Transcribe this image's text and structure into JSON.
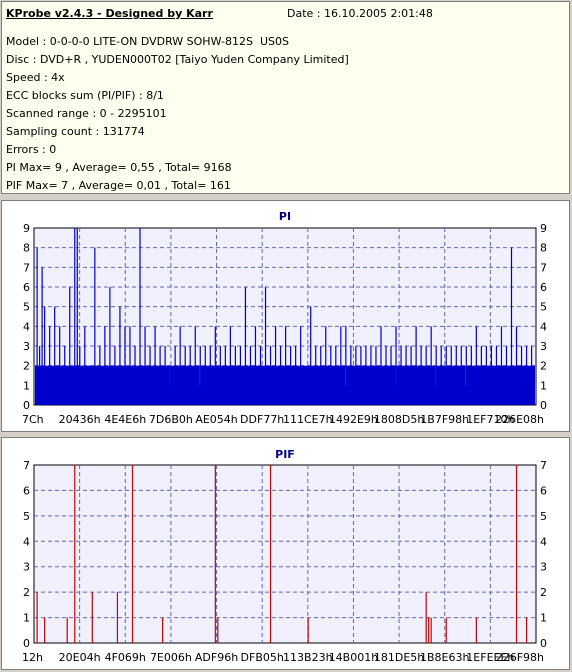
{
  "header": {
    "app_title": "KProbe v2.4.3 - Designed by Karr",
    "date": "Date : 16.10.2005 2:01:48"
  },
  "info_lines": [
    "Model : 0-0-0-0 LITE-ON DVDRW SOHW-812S  US0S",
    "Disc : DVD+R , YUDEN000T02 [Taiyo Yuden Company Limited]",
    "Speed : 4x",
    "ECC blocks sum (PI/PIF) : 8/1",
    "Scanned range : 0 - 2295101",
    "Sampling count : 131774",
    "Errors : 0",
    "PI Max= 9 , Average= 0,55 , Total= 9168",
    "PIF Max= 7 , Average= 0,01 , Total= 161"
  ],
  "colors": {
    "pi_bar": "#0000cc",
    "pif_bar": "#cc0000",
    "plot_bg": "#f0f0ff",
    "grid": "#6464b4"
  },
  "chart_data": [
    {
      "type": "bar",
      "title": "PI",
      "ylim": [
        0,
        9
      ],
      "y_ticks": [
        0,
        1,
        2,
        3,
        4,
        5,
        6,
        7,
        8,
        9
      ],
      "x_tick_labels": [
        "7Ch",
        "20436h",
        "4E4E6h",
        "7D6B0h",
        "AE054h",
        "DDF77h",
        "111CE7h",
        "1492E9h",
        "1808D5h",
        "1B7F98h",
        "1EF710h",
        "226E08h"
      ],
      "grid": true,
      "baseline_level": 2,
      "spikes": [
        [
          0.005,
          8
        ],
        [
          0.01,
          3
        ],
        [
          0.015,
          7
        ],
        [
          0.02,
          5
        ],
        [
          0.03,
          4
        ],
        [
          0.04,
          5
        ],
        [
          0.05,
          4
        ],
        [
          0.06,
          3
        ],
        [
          0.07,
          6
        ],
        [
          0.08,
          9
        ],
        [
          0.085,
          9
        ],
        [
          0.09,
          3
        ],
        [
          0.1,
          4
        ],
        [
          0.11,
          2
        ],
        [
          0.12,
          8
        ],
        [
          0.13,
          3
        ],
        [
          0.14,
          4
        ],
        [
          0.15,
          6
        ],
        [
          0.16,
          3
        ],
        [
          0.17,
          5
        ],
        [
          0.18,
          4
        ],
        [
          0.19,
          4
        ],
        [
          0.2,
          3
        ],
        [
          0.21,
          9
        ],
        [
          0.22,
          4
        ],
        [
          0.23,
          3
        ],
        [
          0.24,
          4
        ],
        [
          0.25,
          3
        ],
        [
          0.26,
          3
        ],
        [
          0.27,
          2
        ],
        [
          0.28,
          3
        ],
        [
          0.29,
          4
        ],
        [
          0.3,
          3
        ],
        [
          0.31,
          3
        ],
        [
          0.32,
          4
        ],
        [
          0.33,
          3
        ],
        [
          0.34,
          3
        ],
        [
          0.35,
          3
        ],
        [
          0.36,
          4
        ],
        [
          0.37,
          3
        ],
        [
          0.38,
          3
        ],
        [
          0.39,
          4
        ],
        [
          0.4,
          3
        ],
        [
          0.41,
          3
        ],
        [
          0.42,
          6
        ],
        [
          0.43,
          3
        ],
        [
          0.44,
          4
        ],
        [
          0.45,
          3
        ],
        [
          0.46,
          6
        ],
        [
          0.47,
          3
        ],
        [
          0.48,
          4
        ],
        [
          0.49,
          3
        ],
        [
          0.5,
          4
        ],
        [
          0.51,
          3
        ],
        [
          0.52,
          3
        ],
        [
          0.53,
          4
        ],
        [
          0.55,
          5
        ],
        [
          0.56,
          3
        ],
        [
          0.57,
          3
        ],
        [
          0.58,
          4
        ],
        [
          0.59,
          3
        ],
        [
          0.6,
          3
        ],
        [
          0.61,
          4
        ],
        [
          0.62,
          4
        ],
        [
          0.63,
          3
        ],
        [
          0.64,
          3
        ],
        [
          0.65,
          3
        ],
        [
          0.66,
          3
        ],
        [
          0.67,
          3
        ],
        [
          0.68,
          3
        ],
        [
          0.69,
          4
        ],
        [
          0.7,
          3
        ],
        [
          0.71,
          3
        ],
        [
          0.72,
          4
        ],
        [
          0.73,
          3
        ],
        [
          0.74,
          3
        ],
        [
          0.75,
          3
        ],
        [
          0.76,
          4
        ],
        [
          0.77,
          3
        ],
        [
          0.78,
          3
        ],
        [
          0.79,
          4
        ],
        [
          0.8,
          3
        ],
        [
          0.81,
          3
        ],
        [
          0.82,
          3
        ],
        [
          0.83,
          3
        ],
        [
          0.84,
          3
        ],
        [
          0.85,
          3
        ],
        [
          0.86,
          3
        ],
        [
          0.87,
          3
        ],
        [
          0.88,
          4
        ],
        [
          0.89,
          3
        ],
        [
          0.9,
          3
        ],
        [
          0.91,
          3
        ],
        [
          0.92,
          3
        ],
        [
          0.93,
          4
        ],
        [
          0.94,
          3
        ],
        [
          0.95,
          8
        ],
        [
          0.96,
          4
        ],
        [
          0.97,
          3
        ],
        [
          0.98,
          3
        ],
        [
          0.99,
          3
        ]
      ],
      "dips": [
        0.25,
        0.27,
        0.33,
        0.62,
        0.72,
        0.8,
        0.86,
        0.99
      ]
    },
    {
      "type": "bar",
      "title": "PIF",
      "ylim": [
        0,
        7
      ],
      "y_ticks": [
        0,
        1,
        2,
        3,
        4,
        5,
        6,
        7
      ],
      "x_tick_labels": [
        "12h",
        "20E04h",
        "4F069h",
        "7E006h",
        "ADF96h",
        "DFB05h",
        "113B23h",
        "14B001h",
        "181DE5h",
        "1B8E63h",
        "1EFEEEh",
        "226F98h"
      ],
      "grid": true,
      "spikes": [
        [
          0.005,
          2
        ],
        [
          0.02,
          1
        ],
        [
          0.065,
          1
        ],
        [
          0.08,
          7
        ],
        [
          0.115,
          2
        ],
        [
          0.165,
          2
        ],
        [
          0.195,
          7
        ],
        [
          0.255,
          1
        ],
        [
          0.36,
          7
        ],
        [
          0.365,
          1
        ],
        [
          0.47,
          7
        ],
        [
          0.545,
          1
        ],
        [
          0.78,
          2
        ],
        [
          0.785,
          1
        ],
        [
          0.79,
          1
        ],
        [
          0.82,
          1
        ],
        [
          0.88,
          1
        ],
        [
          0.96,
          7
        ],
        [
          0.98,
          1
        ]
      ]
    }
  ]
}
